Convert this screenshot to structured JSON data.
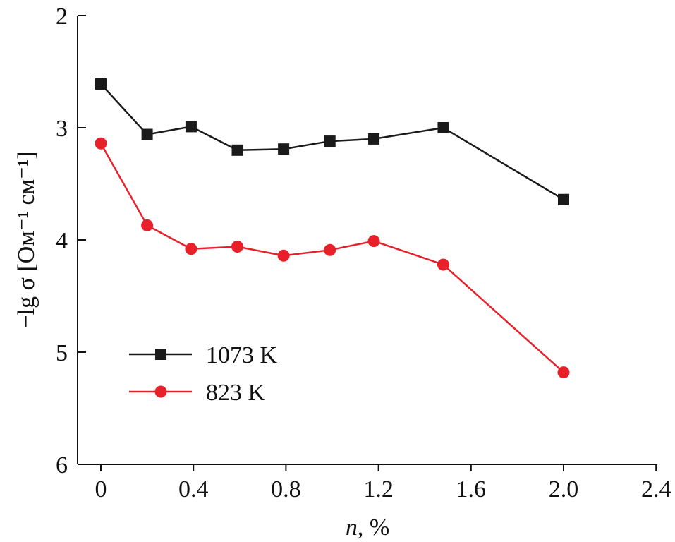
{
  "chart_data": {
    "type": "line",
    "title": "",
    "xlabel_var": "n",
    "xlabel_rest": ", %",
    "ylabel": "−lg σ [Ом⁻¹ см⁻¹]",
    "xlim": [
      -0.1,
      2.4
    ],
    "ylim": [
      2,
      6
    ],
    "y_inverted": true,
    "grid": false,
    "legend_placement": "lower-left",
    "x_ticks": [
      0,
      0.4,
      0.8,
      1.2,
      1.6,
      2.0,
      2.4
    ],
    "x_tick_labels": [
      "0",
      "0.4",
      "0.8",
      "1.2",
      "1.6",
      "2.0",
      "2.4"
    ],
    "y_ticks": [
      2,
      3,
      4,
      5,
      6
    ],
    "y_tick_labels": [
      "2",
      "3",
      "4",
      "5",
      "6"
    ],
    "series": [
      {
        "name": "1073 K",
        "color": "#1a1a1a",
        "marker": "square",
        "x": [
          0,
          0.2,
          0.39,
          0.59,
          0.79,
          0.99,
          1.18,
          1.48,
          2.0
        ],
        "y": [
          2.61,
          3.06,
          2.99,
          3.2,
          3.19,
          3.12,
          3.1,
          3.0,
          3.64
        ]
      },
      {
        "name": "823 K",
        "color": "#e8202a",
        "marker": "circle",
        "x": [
          0,
          0.2,
          0.39,
          0.59,
          0.79,
          0.99,
          1.18,
          1.48,
          2.0
        ],
        "y": [
          3.14,
          3.87,
          4.08,
          4.06,
          4.14,
          4.09,
          4.01,
          4.22,
          5.18
        ]
      }
    ]
  }
}
